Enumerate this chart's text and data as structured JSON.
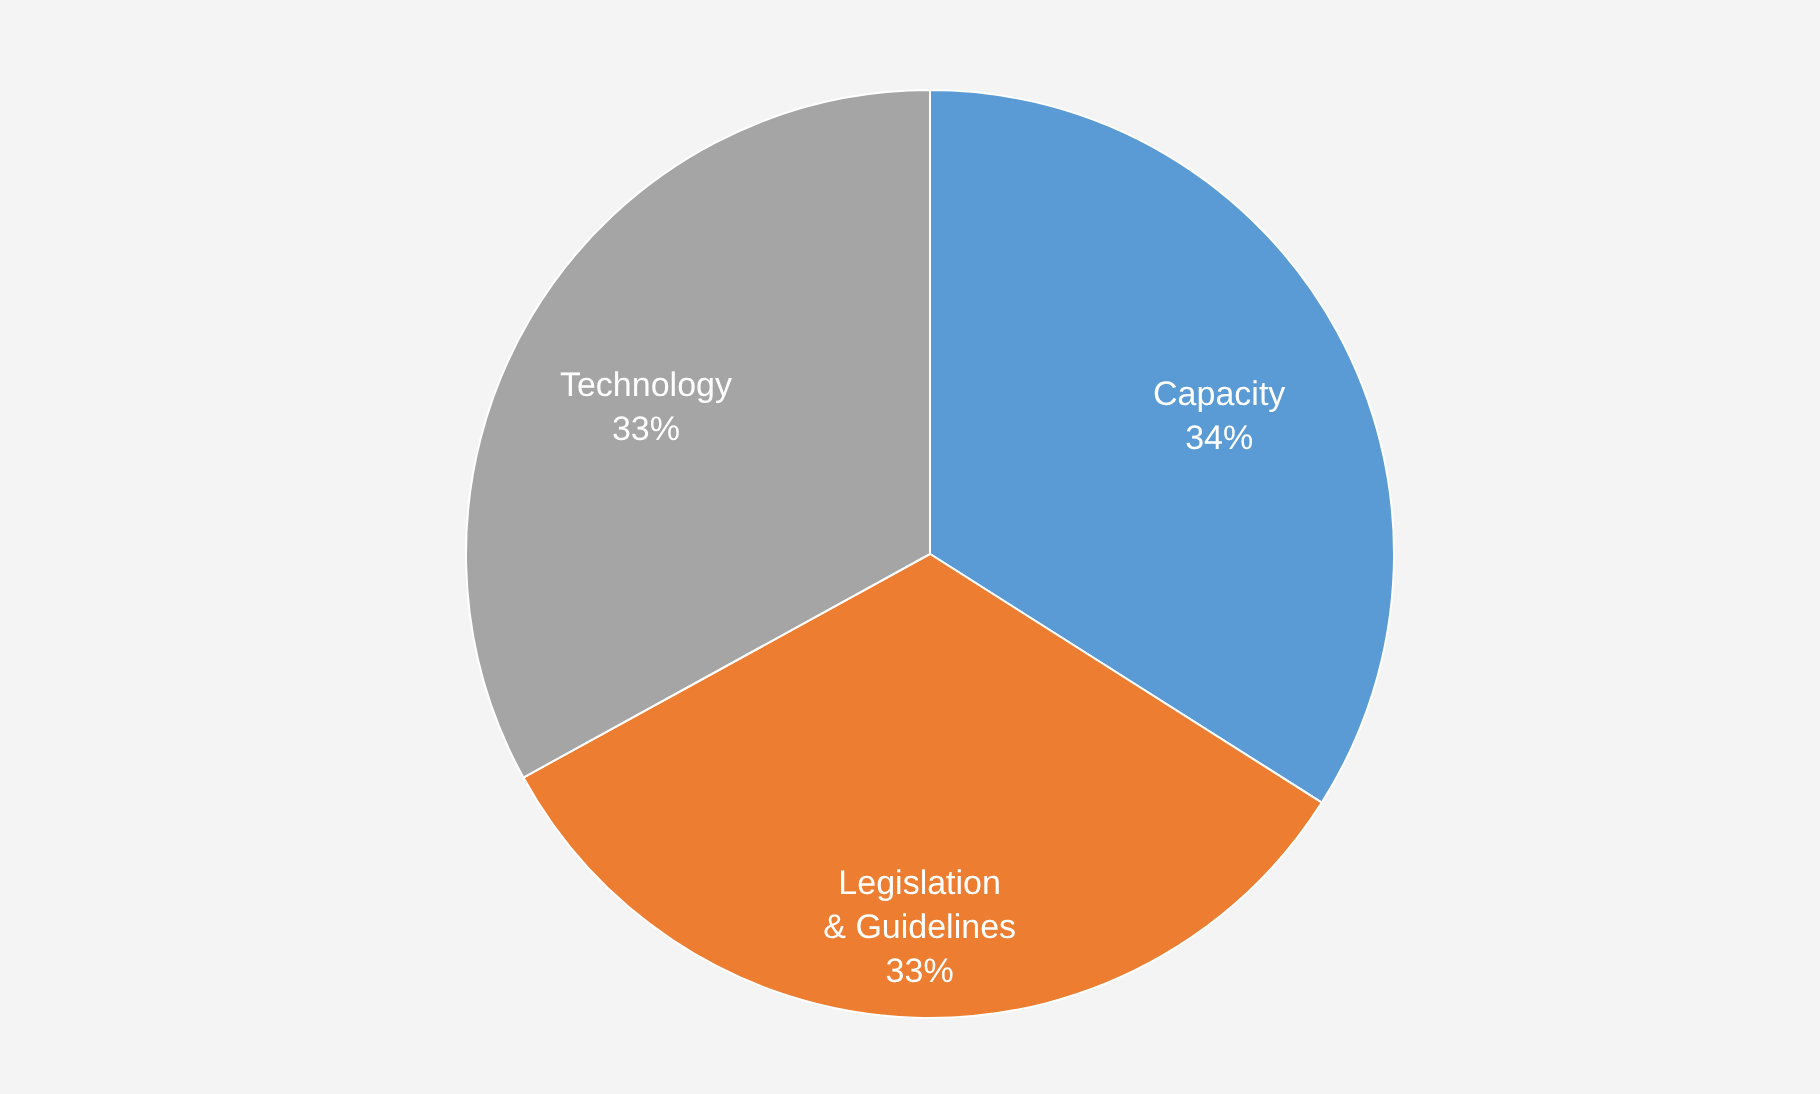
{
  "chart_data": {
    "type": "pie",
    "categories": [
      "Capacity",
      "Legislation & Guidelines",
      "Technology"
    ],
    "values": [
      34,
      33,
      33
    ],
    "value_labels": [
      "34%",
      "33%",
      "33%"
    ],
    "colors": [
      "#5b9bd5",
      "#ed7d31",
      "#a5a5a5"
    ]
  }
}
